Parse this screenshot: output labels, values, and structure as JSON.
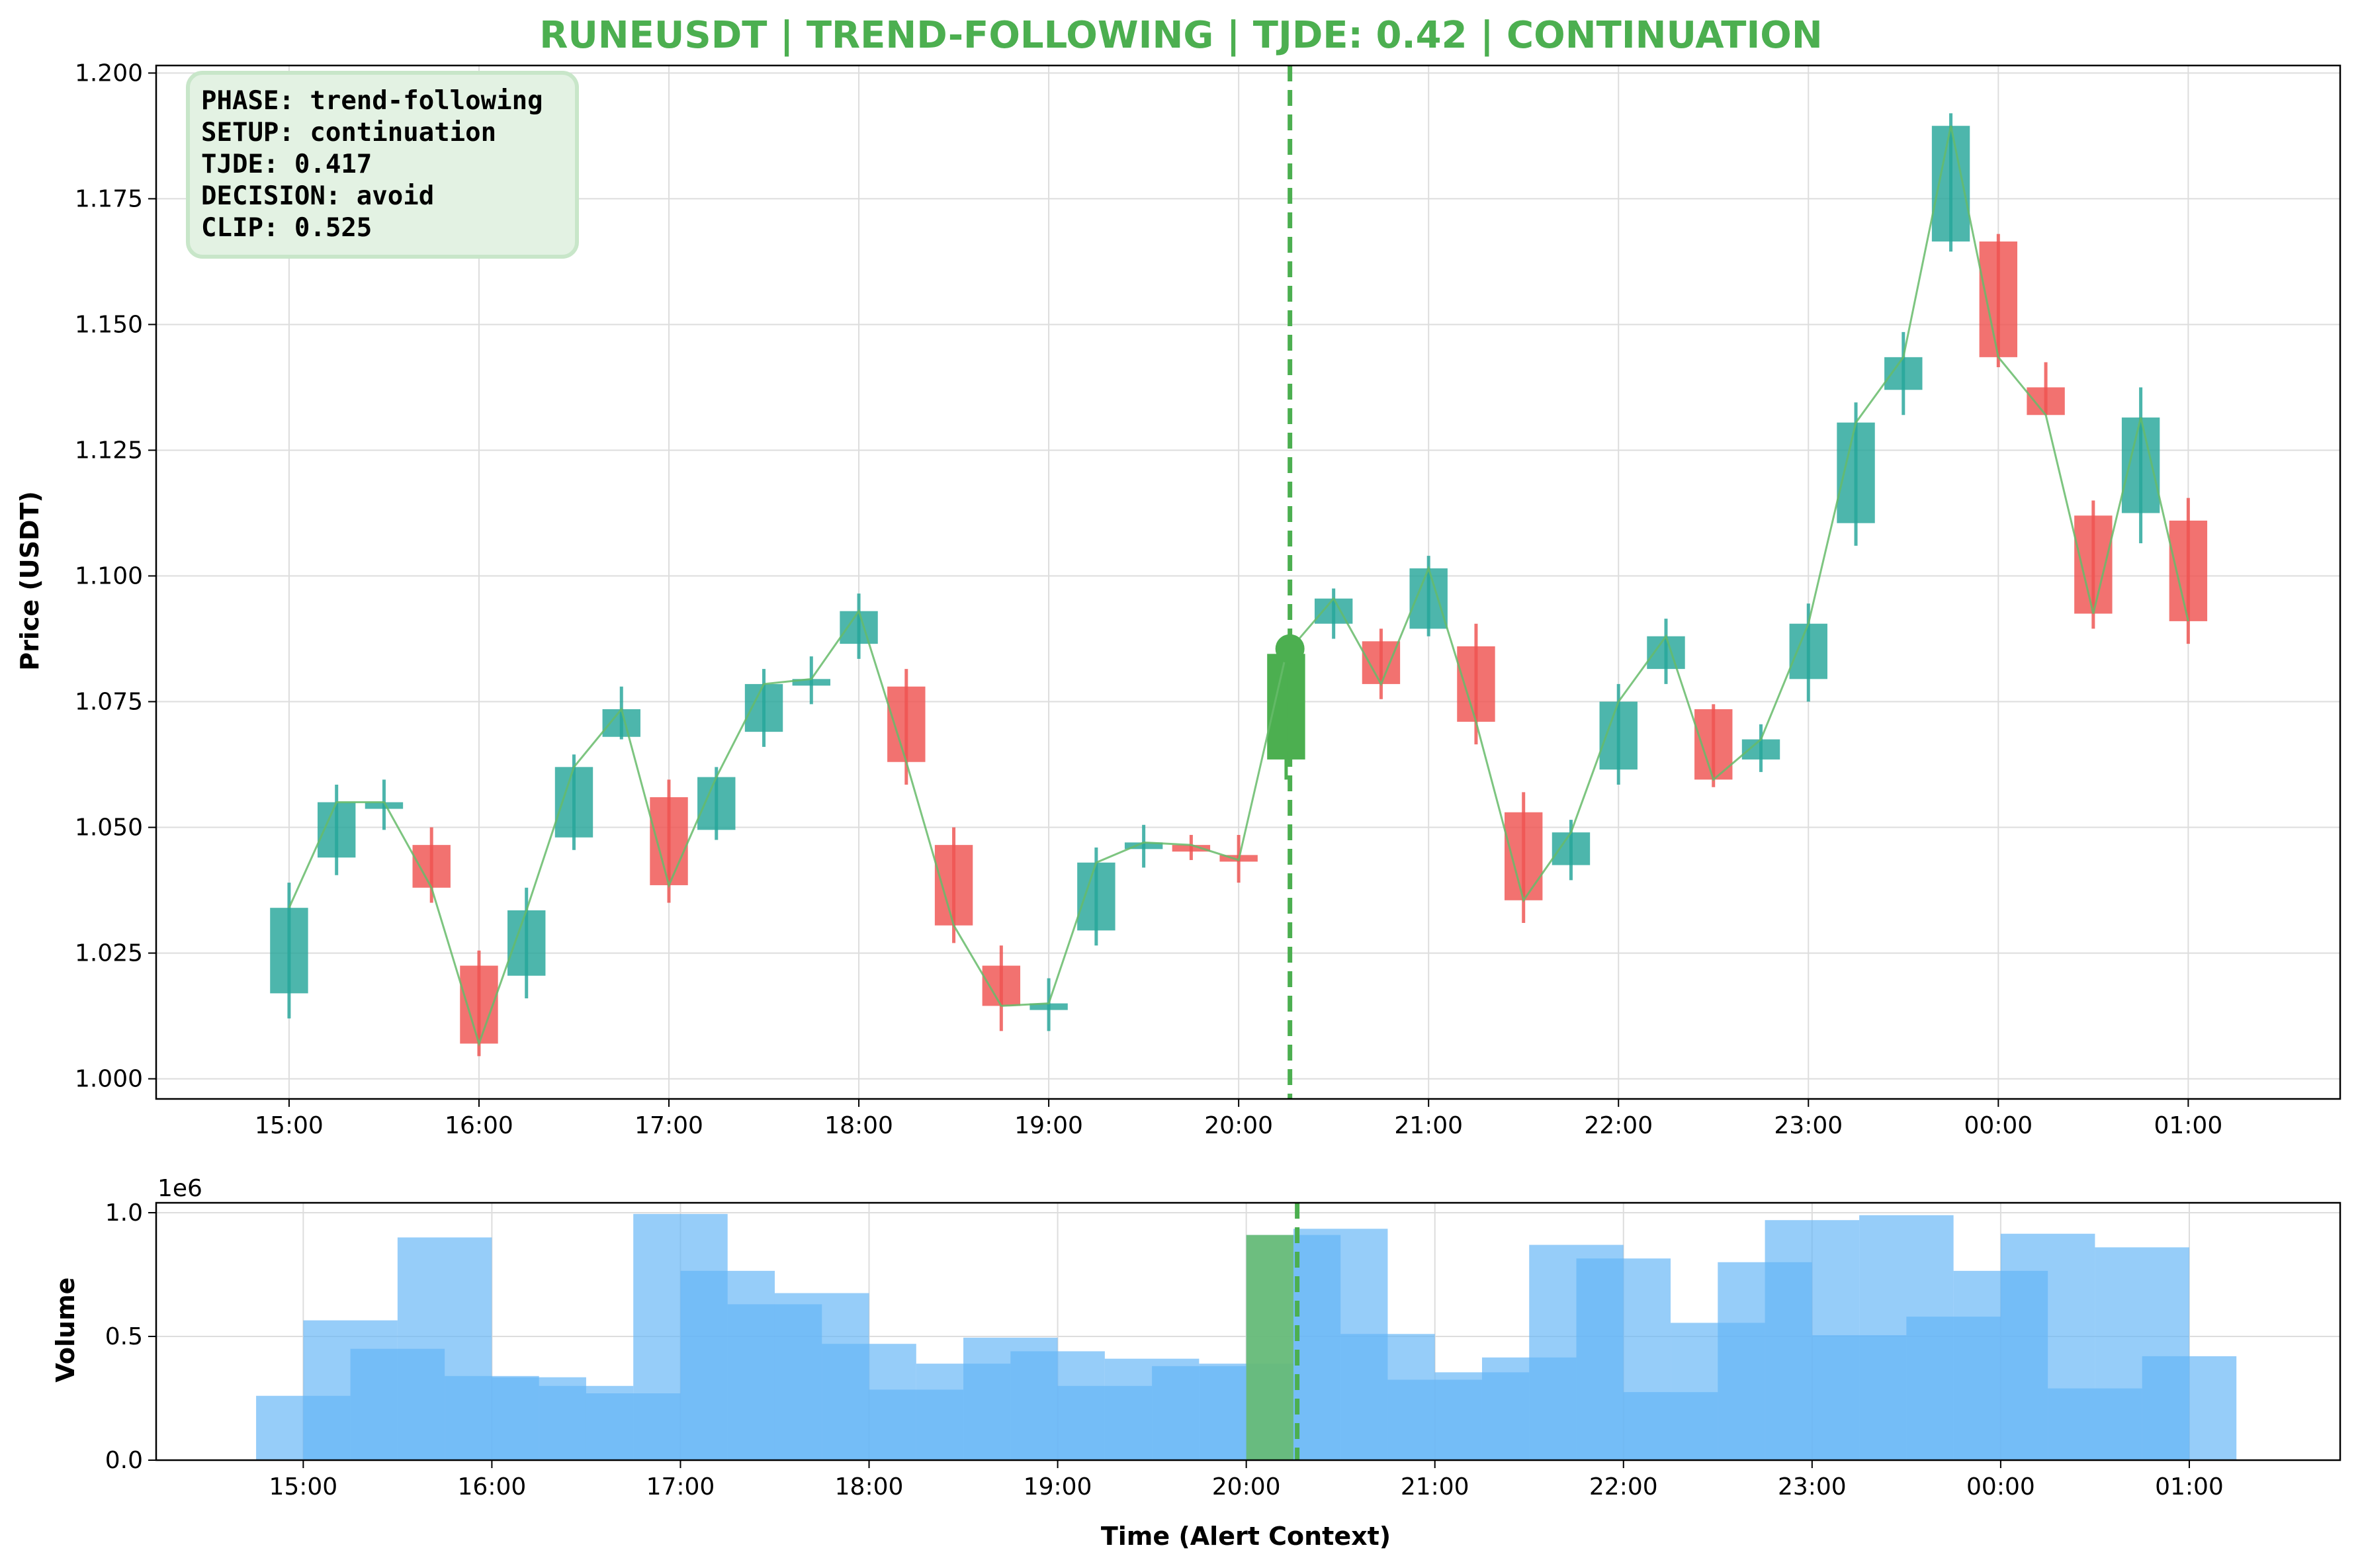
{
  "title": "RUNEUSDT | TREND-FOLLOWING | TJDE: 0.42 | CONTINUATION",
  "info_box": [
    "PHASE: trend-following",
    "SETUP: continuation",
    "TJDE: 0.417",
    "DECISION: avoid",
    "CLIP: 0.525"
  ],
  "colors": {
    "title": "#4caf50",
    "up": "#26a69a",
    "down": "#ef5350",
    "alert": "#4caf50",
    "line": "#66bb6a",
    "volume": "#64b5f6",
    "volume_alert": "#66bb6a",
    "info_bg": "#e3f2e3",
    "info_border": "#c8e6c9"
  },
  "chart_data": [
    {
      "type": "candlestick",
      "ylabel": "Price (USDT)",
      "ylim": [
        0.996,
        1.2015
      ],
      "yticks": [
        "1.000",
        "1.025",
        "1.050",
        "1.075",
        "1.100",
        "1.125",
        "1.150",
        "1.175",
        "1.200"
      ],
      "xlim": [
        -0.7,
        10.8
      ],
      "xticks": [
        "15:00",
        "16:00",
        "17:00",
        "18:00",
        "19:00",
        "20:00",
        "21:00",
        "22:00",
        "23:00",
        "00:00",
        "01:00"
      ],
      "grid": true,
      "alert": {
        "time": "20:15",
        "x": 5.27,
        "price": 1.0855
      },
      "candles": [
        {
          "t": 0.0,
          "o": 1.017,
          "h": 1.039,
          "l": 1.012,
          "c": 1.034,
          "dir": "up"
        },
        {
          "t": 0.25,
          "o": 1.044,
          "h": 1.0585,
          "l": 1.0405,
          "c": 1.055,
          "dir": "up"
        },
        {
          "t": 0.5,
          "o": 1.055,
          "h": 1.0595,
          "l": 1.0495,
          "c": 1.055,
          "dir": "up"
        },
        {
          "t": 0.75,
          "o": 1.0465,
          "h": 1.05,
          "l": 1.035,
          "c": 1.038,
          "dir": "down"
        },
        {
          "t": 1.0,
          "o": 1.0225,
          "h": 1.0255,
          "l": 1.0045,
          "c": 1.007,
          "dir": "down"
        },
        {
          "t": 1.25,
          "o": 1.0205,
          "h": 1.038,
          "l": 1.016,
          "c": 1.0335,
          "dir": "up"
        },
        {
          "t": 1.5,
          "o": 1.048,
          "h": 1.0645,
          "l": 1.0455,
          "c": 1.062,
          "dir": "up"
        },
        {
          "t": 1.75,
          "o": 1.068,
          "h": 1.078,
          "l": 1.0675,
          "c": 1.0735,
          "dir": "up"
        },
        {
          "t": 2.0,
          "o": 1.056,
          "h": 1.0595,
          "l": 1.035,
          "c": 1.0385,
          "dir": "down"
        },
        {
          "t": 2.25,
          "o": 1.0495,
          "h": 1.062,
          "l": 1.0475,
          "c": 1.06,
          "dir": "up"
        },
        {
          "t": 2.5,
          "o": 1.069,
          "h": 1.0815,
          "l": 1.066,
          "c": 1.0785,
          "dir": "up"
        },
        {
          "t": 2.75,
          "o": 1.0795,
          "h": 1.084,
          "l": 1.0745,
          "c": 1.0795,
          "dir": "up"
        },
        {
          "t": 3.0,
          "o": 1.0865,
          "h": 1.0965,
          "l": 1.0835,
          "c": 1.093,
          "dir": "up"
        },
        {
          "t": 3.25,
          "o": 1.078,
          "h": 1.0815,
          "l": 1.0585,
          "c": 1.063,
          "dir": "down"
        },
        {
          "t": 3.5,
          "o": 1.0465,
          "h": 1.05,
          "l": 1.027,
          "c": 1.0305,
          "dir": "down"
        },
        {
          "t": 3.75,
          "o": 1.0225,
          "h": 1.0265,
          "l": 1.0095,
          "c": 1.0145,
          "dir": "down"
        },
        {
          "t": 4.0,
          "o": 1.015,
          "h": 1.02,
          "l": 1.0095,
          "c": 1.015,
          "dir": "up"
        },
        {
          "t": 4.25,
          "o": 1.0295,
          "h": 1.046,
          "l": 1.0265,
          "c": 1.043,
          "dir": "up"
        },
        {
          "t": 4.5,
          "o": 1.046,
          "h": 1.0505,
          "l": 1.042,
          "c": 1.047,
          "dir": "up"
        },
        {
          "t": 4.75,
          "o": 1.0465,
          "h": 1.0485,
          "l": 1.0435,
          "c": 1.0465,
          "dir": "down"
        },
        {
          "t": 5.0,
          "o": 1.0445,
          "h": 1.0485,
          "l": 1.039,
          "c": 1.0435,
          "dir": "down"
        },
        {
          "t": 5.25,
          "o": 1.0635,
          "h": 1.087,
          "l": 1.0595,
          "c": 1.0845,
          "dir": "alert"
        },
        {
          "t": 5.5,
          "o": 1.0905,
          "h": 1.0975,
          "l": 1.0875,
          "c": 1.0955,
          "dir": "up"
        },
        {
          "t": 5.75,
          "o": 1.087,
          "h": 1.0895,
          "l": 1.0755,
          "c": 1.0785,
          "dir": "down"
        },
        {
          "t": 6.0,
          "o": 1.0895,
          "h": 1.104,
          "l": 1.088,
          "c": 1.1015,
          "dir": "up"
        },
        {
          "t": 6.25,
          "o": 1.086,
          "h": 1.0905,
          "l": 1.0665,
          "c": 1.071,
          "dir": "down"
        },
        {
          "t": 6.5,
          "o": 1.053,
          "h": 1.057,
          "l": 1.031,
          "c": 1.0355,
          "dir": "down"
        },
        {
          "t": 6.75,
          "o": 1.0425,
          "h": 1.0515,
          "l": 1.0395,
          "c": 1.049,
          "dir": "up"
        },
        {
          "t": 7.0,
          "o": 1.0615,
          "h": 1.0785,
          "l": 1.0585,
          "c": 1.075,
          "dir": "up"
        },
        {
          "t": 7.25,
          "o": 1.0815,
          "h": 1.0915,
          "l": 1.0785,
          "c": 1.088,
          "dir": "up"
        },
        {
          "t": 7.5,
          "o": 1.0735,
          "h": 1.0745,
          "l": 1.058,
          "c": 1.0595,
          "dir": "down"
        },
        {
          "t": 7.75,
          "o": 1.0635,
          "h": 1.0705,
          "l": 1.061,
          "c": 1.0675,
          "dir": "up"
        },
        {
          "t": 8.0,
          "o": 1.0795,
          "h": 1.0945,
          "l": 1.075,
          "c": 1.0905,
          "dir": "up"
        },
        {
          "t": 8.25,
          "o": 1.1105,
          "h": 1.1345,
          "l": 1.106,
          "c": 1.1305,
          "dir": "up"
        },
        {
          "t": 8.5,
          "o": 1.137,
          "h": 1.1485,
          "l": 1.132,
          "c": 1.1435,
          "dir": "up"
        },
        {
          "t": 8.75,
          "o": 1.1665,
          "h": 1.192,
          "l": 1.1645,
          "c": 1.1895,
          "dir": "up"
        },
        {
          "t": 9.0,
          "o": 1.1665,
          "h": 1.168,
          "l": 1.1415,
          "c": 1.1435,
          "dir": "down"
        },
        {
          "t": 9.25,
          "o": 1.1375,
          "h": 1.1425,
          "l": 1.132,
          "c": 1.132,
          "dir": "down"
        },
        {
          "t": 9.5,
          "o": 1.112,
          "h": 1.115,
          "l": 1.0895,
          "c": 1.0925,
          "dir": "down"
        },
        {
          "t": 9.75,
          "o": 1.1125,
          "h": 1.1375,
          "l": 1.1065,
          "c": 1.1315,
          "dir": "up"
        },
        {
          "t": 10.0,
          "o": 1.111,
          "h": 1.1155,
          "l": 1.0865,
          "c": 1.091,
          "dir": "down"
        }
      ]
    },
    {
      "type": "bar",
      "xlabel": "Time (Alert Context)",
      "ylabel": "Volume",
      "y_scale_label": "1e6",
      "ylim": [
        0,
        1.04
      ],
      "yticks": [
        "0.0",
        "0.5",
        "1.0"
      ],
      "xlim": [
        -0.78,
        10.8
      ],
      "xticks": [
        "15:00",
        "16:00",
        "17:00",
        "18:00",
        "19:00",
        "20:00",
        "21:00",
        "22:00",
        "23:00",
        "00:00",
        "01:00"
      ],
      "grid": true,
      "alert_bar_x": 5.0,
      "alert_bar_value": 0.91,
      "bars": [
        {
          "x": -0.25,
          "v": 0.26
        },
        {
          "x": 0.0,
          "v": 0.565
        },
        {
          "x": 0.25,
          "v": 0.45
        },
        {
          "x": 0.5,
          "v": 0.9
        },
        {
          "x": 0.75,
          "v": 0.34
        },
        {
          "x": 1.0,
          "v": 0.335
        },
        {
          "x": 1.25,
          "v": 0.3
        },
        {
          "x": 1.5,
          "v": 0.27
        },
        {
          "x": 1.75,
          "v": 0.995
        },
        {
          "x": 2.0,
          "v": 0.765
        },
        {
          "x": 2.25,
          "v": 0.63
        },
        {
          "x": 2.5,
          "v": 0.675
        },
        {
          "x": 2.75,
          "v": 0.47
        },
        {
          "x": 3.0,
          "v": 0.285
        },
        {
          "x": 3.25,
          "v": 0.39
        },
        {
          "x": 3.5,
          "v": 0.495
        },
        {
          "x": 3.75,
          "v": 0.44
        },
        {
          "x": 4.0,
          "v": 0.3
        },
        {
          "x": 4.25,
          "v": 0.41
        },
        {
          "x": 4.5,
          "v": 0.38
        },
        {
          "x": 4.75,
          "v": 0.39
        },
        {
          "x": 5.0,
          "v": 0.91
        },
        {
          "x": 5.25,
          "v": 0.935
        },
        {
          "x": 5.5,
          "v": 0.51
        },
        {
          "x": 5.75,
          "v": 0.325
        },
        {
          "x": 6.0,
          "v": 0.355
        },
        {
          "x": 6.25,
          "v": 0.415
        },
        {
          "x": 6.5,
          "v": 0.87
        },
        {
          "x": 6.75,
          "v": 0.815
        },
        {
          "x": 7.0,
          "v": 0.275
        },
        {
          "x": 7.25,
          "v": 0.555
        },
        {
          "x": 7.5,
          "v": 0.8
        },
        {
          "x": 7.75,
          "v": 0.97
        },
        {
          "x": 8.0,
          "v": 0.505
        },
        {
          "x": 8.25,
          "v": 0.99
        },
        {
          "x": 8.5,
          "v": 0.58
        },
        {
          "x": 8.75,
          "v": 0.765
        },
        {
          "x": 9.0,
          "v": 0.915
        },
        {
          "x": 9.25,
          "v": 0.29
        },
        {
          "x": 9.5,
          "v": 0.86
        },
        {
          "x": 9.75,
          "v": 0.42
        }
      ]
    }
  ]
}
